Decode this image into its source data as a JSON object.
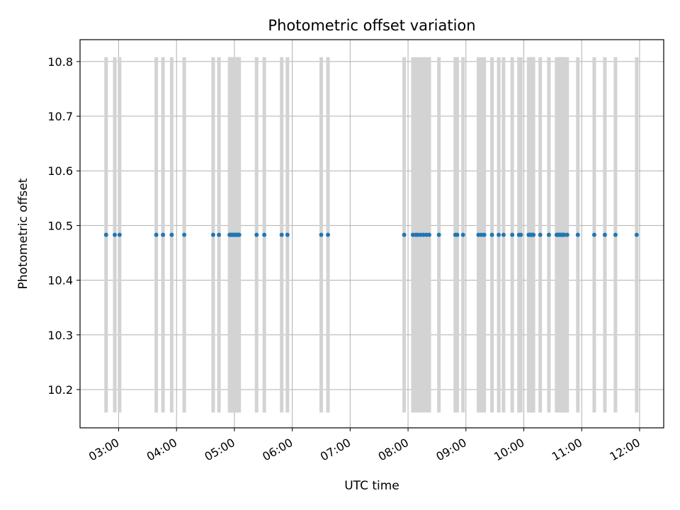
{
  "chart_data": {
    "type": "scatter",
    "title": "Photometric offset variation",
    "xlabel": "UTC time",
    "ylabel": "Photometric offset",
    "xlim": [
      "02:20",
      "12:25"
    ],
    "ylim": [
      10.13,
      10.84
    ],
    "x_ticks": [
      "03:00",
      "04:00",
      "05:00",
      "06:00",
      "07:00",
      "08:00",
      "09:00",
      "10:00",
      "11:00",
      "12:00"
    ],
    "y_ticks": [
      "10.2",
      "10.3",
      "10.4",
      "10.5",
      "10.6",
      "10.7",
      "10.8"
    ],
    "grid": true,
    "colors": {
      "points": "#1f77b4",
      "error_bars": "#d3d3d3",
      "grid": "#b0b0b0"
    },
    "series": [
      {
        "y_value": 10.483,
        "error_low": 10.158,
        "error_high": 10.808,
        "x": [
          "02:47",
          "02:56",
          "03:01",
          "03:39",
          "03:46",
          "03:55",
          "04:08",
          "04:38",
          "04:44",
          "04:55",
          "04:56",
          "04:57",
          "04:58",
          "04:59",
          "05:00",
          "05:01",
          "05:02",
          "05:03",
          "05:04",
          "05:05",
          "05:23",
          "05:31",
          "05:49",
          "05:55",
          "06:30",
          "06:37",
          "07:56",
          "08:05",
          "08:08",
          "08:10",
          "08:13",
          "08:16",
          "08:19",
          "08:22",
          "08:32",
          "08:49",
          "08:51",
          "08:57",
          "09:13",
          "09:16",
          "09:19",
          "09:27",
          "09:34",
          "09:39",
          "09:48",
          "09:55",
          "09:57",
          "10:05",
          "10:06",
          "10:07",
          "10:08",
          "10:09",
          "10:10",
          "10:17",
          "10:26",
          "10:34",
          "10:35",
          "10:36",
          "10:37",
          "10:38",
          "10:39",
          "10:40",
          "10:41",
          "10:42",
          "10:45",
          "10:56",
          "11:13",
          "11:24",
          "11:35",
          "11:57"
        ]
      }
    ]
  }
}
